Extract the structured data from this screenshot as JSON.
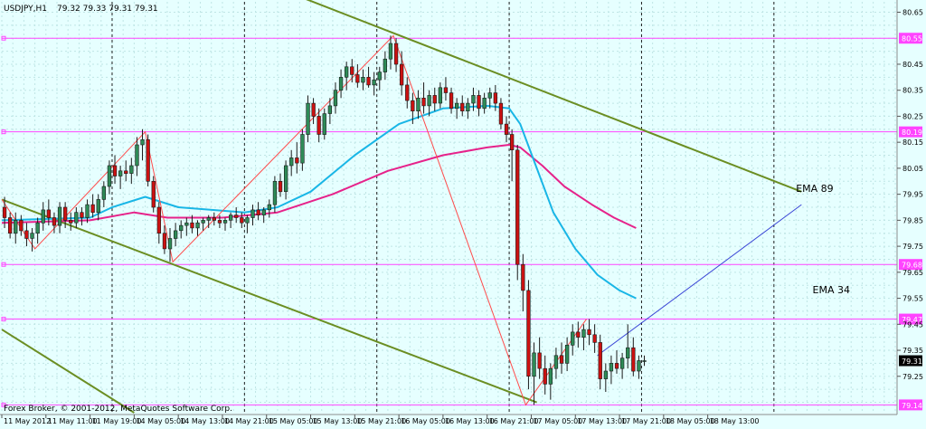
{
  "header": {
    "symbol": "USDJPY,H1",
    "ohlc": "79.32 79.33 79.31 79.31"
  },
  "footer": {
    "copyright": "Forex Broker, © 2001-2012, MetaQuotes Software Corp."
  },
  "colors": {
    "background": "#e6ffff",
    "grid": "#bfe5e5",
    "bull_candle": "#2e8b57",
    "bear_candle": "#cc1111",
    "ema34": "#19b6e6",
    "ema89": "#e6228a",
    "hline": "#ff44ff",
    "trendline": "#6b8e23",
    "zigzag": "#ff4b4b",
    "projection": "#3b46d6",
    "price_tag": "#ff44ff",
    "current_tag": "#000000"
  },
  "chart_data": {
    "type": "candlestick",
    "symbol": "USDJPY,H1",
    "ylim": [
      79.11,
      80.69
    ],
    "y_ticks": [
      "80.65",
      "80.45",
      "80.35",
      "80.25",
      "80.15",
      "80.05",
      "79.95",
      "79.85",
      "79.75",
      "79.65",
      "79.55",
      "79.45",
      "79.35",
      "79.25"
    ],
    "x_ticks": [
      "11 May 2012",
      "11 May 11:00",
      "11 May 19:00",
      "14 May 05:00",
      "14 May 13:00",
      "14 May 21:00",
      "15 May 05:00",
      "15 May 13:00",
      "15 May 21:00",
      "16 May 05:00",
      "16 May 13:00",
      "16 May 21:00",
      "17 May 05:00",
      "17 May 13:00",
      "17 May 21:00",
      "18 May 05:00",
      "18 May 13:00"
    ],
    "x_range": [
      0,
      162
    ],
    "annotations": [
      {
        "text": "EMA 89",
        "x": 144,
        "y": 79.96
      },
      {
        "text": "EMA 34",
        "x": 147,
        "y": 79.57
      }
    ],
    "horizontal_levels": [
      {
        "label": "80.55",
        "value": 80.55
      },
      {
        "label": "80.19",
        "value": 80.19
      },
      {
        "label": "79.68",
        "value": 79.68
      },
      {
        "label": "79.47",
        "value": 79.47
      },
      {
        "label": "79.14",
        "value": 79.14
      }
    ],
    "current_price": "79.31",
    "candles": [
      [
        79.9,
        79.94,
        79.82,
        79.86
      ],
      [
        79.86,
        79.88,
        79.78,
        79.8
      ],
      [
        79.8,
        79.88,
        79.76,
        79.85
      ],
      [
        79.85,
        79.87,
        79.79,
        79.81
      ],
      [
        79.81,
        79.84,
        79.75,
        79.78
      ],
      [
        79.78,
        79.82,
        79.73,
        79.8
      ],
      [
        79.8,
        79.86,
        79.76,
        79.84
      ],
      [
        79.84,
        79.92,
        79.81,
        79.89
      ],
      [
        79.89,
        79.93,
        79.83,
        79.86
      ],
      [
        79.86,
        79.88,
        79.8,
        79.83
      ],
      [
        79.83,
        79.92,
        79.8,
        79.9
      ],
      [
        79.9,
        79.92,
        79.82,
        79.85
      ],
      [
        79.85,
        79.88,
        79.81,
        79.84
      ],
      [
        79.84,
        79.9,
        79.82,
        79.88
      ],
      [
        79.88,
        79.9,
        79.83,
        79.86
      ],
      [
        79.86,
        79.93,
        79.84,
        79.91
      ],
      [
        79.91,
        79.95,
        79.86,
        79.88
      ],
      [
        79.88,
        79.95,
        79.85,
        79.93
      ],
      [
        79.93,
        80.0,
        79.9,
        79.98
      ],
      [
        79.98,
        80.08,
        79.95,
        80.06
      ],
      [
        80.06,
        80.1,
        79.99,
        80.02
      ],
      [
        80.02,
        80.06,
        79.97,
        80.04
      ],
      [
        80.04,
        80.08,
        80.0,
        80.03
      ],
      [
        80.03,
        80.09,
        79.99,
        80.06
      ],
      [
        80.06,
        80.17,
        80.02,
        80.14
      ],
      [
        80.14,
        80.2,
        80.08,
        80.16
      ],
      [
        80.16,
        80.18,
        79.98,
        80.0
      ],
      [
        80.0,
        80.02,
        79.88,
        79.9
      ],
      [
        79.9,
        79.92,
        79.76,
        79.8
      ],
      [
        79.8,
        79.83,
        79.72,
        79.74
      ],
      [
        79.74,
        79.82,
        79.69,
        79.78
      ],
      [
        79.78,
        79.84,
        79.75,
        79.81
      ],
      [
        79.81,
        79.85,
        79.78,
        79.83
      ],
      [
        79.83,
        79.86,
        79.79,
        79.84
      ],
      [
        79.84,
        79.87,
        79.8,
        79.82
      ],
      [
        79.82,
        79.85,
        79.79,
        79.84
      ],
      [
        79.84,
        79.86,
        79.81,
        79.85
      ],
      [
        79.85,
        79.87,
        79.82,
        79.86
      ],
      [
        79.86,
        79.88,
        79.83,
        79.85
      ],
      [
        79.85,
        79.87,
        79.82,
        79.84
      ],
      [
        79.84,
        79.86,
        79.81,
        79.85
      ],
      [
        79.85,
        79.88,
        79.82,
        79.87
      ],
      [
        79.87,
        79.9,
        79.84,
        79.86
      ],
      [
        79.86,
        79.88,
        79.82,
        79.84
      ],
      [
        79.84,
        79.87,
        79.8,
        79.86
      ],
      [
        79.86,
        79.91,
        79.83,
        79.89
      ],
      [
        79.89,
        79.92,
        79.85,
        79.87
      ],
      [
        79.87,
        79.9,
        79.84,
        79.89
      ],
      [
        79.89,
        79.93,
        79.86,
        79.91
      ],
      [
        79.91,
        80.02,
        79.88,
        80.0
      ],
      [
        80.0,
        80.03,
        79.94,
        79.96
      ],
      [
        79.96,
        80.08,
        79.93,
        80.06
      ],
      [
        80.06,
        80.12,
        80.02,
        80.09
      ],
      [
        80.09,
        80.15,
        80.03,
        80.07
      ],
      [
        80.07,
        80.2,
        80.04,
        80.18
      ],
      [
        80.18,
        80.33,
        80.15,
        80.3
      ],
      [
        80.3,
        80.32,
        80.22,
        80.25
      ],
      [
        80.25,
        80.28,
        80.15,
        80.18
      ],
      [
        80.18,
        80.28,
        80.16,
        80.26
      ],
      [
        80.26,
        80.32,
        80.22,
        80.29
      ],
      [
        80.29,
        80.38,
        80.26,
        80.35
      ],
      [
        80.35,
        80.43,
        80.32,
        80.4
      ],
      [
        80.4,
        80.46,
        80.35,
        80.44
      ],
      [
        80.44,
        80.47,
        80.38,
        80.41
      ],
      [
        80.41,
        80.45,
        80.36,
        80.38
      ],
      [
        80.38,
        80.43,
        80.35,
        80.4
      ],
      [
        80.4,
        80.44,
        80.36,
        80.37
      ],
      [
        80.37,
        80.42,
        80.33,
        80.39
      ],
      [
        80.39,
        80.44,
        80.35,
        80.42
      ],
      [
        80.42,
        80.5,
        80.39,
        80.47
      ],
      [
        80.47,
        80.56,
        80.43,
        80.53
      ],
      [
        80.53,
        80.55,
        80.42,
        80.45
      ],
      [
        80.45,
        80.5,
        80.33,
        80.37
      ],
      [
        80.37,
        80.4,
        80.28,
        80.31
      ],
      [
        80.31,
        80.34,
        80.22,
        80.27
      ],
      [
        80.27,
        80.35,
        80.24,
        80.32
      ],
      [
        80.32,
        80.38,
        80.26,
        80.29
      ],
      [
        80.29,
        80.35,
        80.25,
        80.33
      ],
      [
        80.33,
        80.36,
        80.27,
        80.3
      ],
      [
        80.3,
        80.38,
        80.28,
        80.36
      ],
      [
        80.36,
        80.4,
        80.31,
        80.34
      ],
      [
        80.34,
        80.36,
        80.26,
        80.28
      ],
      [
        80.28,
        80.32,
        80.24,
        80.3
      ],
      [
        80.3,
        80.33,
        80.25,
        80.27
      ],
      [
        80.27,
        80.32,
        80.24,
        80.3
      ],
      [
        80.3,
        80.36,
        80.27,
        80.33
      ],
      [
        80.33,
        80.35,
        80.25,
        80.28
      ],
      [
        80.28,
        80.34,
        80.26,
        80.32
      ],
      [
        80.32,
        80.36,
        80.28,
        80.34
      ],
      [
        80.34,
        80.37,
        80.27,
        80.3
      ],
      [
        80.3,
        80.32,
        80.2,
        80.22
      ],
      [
        80.22,
        80.25,
        80.15,
        80.18
      ],
      [
        80.18,
        80.2,
        80.0,
        80.12
      ],
      [
        80.12,
        80.14,
        79.62,
        79.68
      ],
      [
        79.68,
        79.72,
        79.5,
        79.58
      ],
      [
        79.58,
        79.62,
        79.2,
        79.25
      ],
      [
        79.25,
        79.38,
        79.14,
        79.34
      ],
      [
        79.34,
        79.4,
        79.24,
        79.28
      ],
      [
        79.28,
        79.33,
        79.18,
        79.22
      ],
      [
        79.22,
        79.3,
        79.16,
        79.28
      ],
      [
        79.28,
        79.36,
        79.24,
        79.33
      ],
      [
        79.33,
        79.38,
        79.26,
        79.3
      ],
      [
        79.3,
        79.4,
        79.27,
        79.37
      ],
      [
        79.37,
        79.45,
        79.33,
        79.42
      ],
      [
        79.42,
        79.46,
        79.36,
        79.4
      ],
      [
        79.4,
        79.45,
        79.35,
        79.43
      ],
      [
        79.43,
        79.47,
        79.37,
        79.41
      ],
      [
        79.41,
        79.45,
        79.34,
        79.38
      ],
      [
        79.38,
        79.41,
        79.2,
        79.24
      ],
      [
        79.24,
        79.3,
        79.19,
        79.27
      ],
      [
        79.27,
        79.33,
        79.22,
        79.3
      ],
      [
        79.3,
        79.35,
        79.26,
        79.28
      ],
      [
        79.28,
        79.34,
        79.24,
        79.32
      ],
      [
        79.32,
        79.45,
        79.28,
        79.36
      ],
      [
        79.36,
        79.4,
        79.25,
        79.27
      ],
      [
        79.27,
        79.33,
        79.24,
        79.31
      ],
      [
        79.31,
        79.33,
        79.29,
        79.31
      ]
    ],
    "ema34": [
      [
        0,
        79.85
      ],
      [
        16,
        79.86
      ],
      [
        20,
        79.9
      ],
      [
        26,
        79.94
      ],
      [
        32,
        79.9
      ],
      [
        44,
        79.88
      ],
      [
        50,
        79.9
      ],
      [
        56,
        79.96
      ],
      [
        64,
        80.1
      ],
      [
        72,
        80.22
      ],
      [
        80,
        80.28
      ],
      [
        88,
        80.29
      ],
      [
        92,
        80.28
      ],
      [
        94,
        80.22
      ],
      [
        97,
        80.05
      ],
      [
        100,
        79.88
      ],
      [
        104,
        79.74
      ],
      [
        108,
        79.64
      ],
      [
        112,
        79.58
      ],
      [
        115,
        79.55
      ]
    ],
    "ema89": [
      [
        0,
        79.84
      ],
      [
        16,
        79.85
      ],
      [
        24,
        79.88
      ],
      [
        30,
        79.86
      ],
      [
        40,
        79.86
      ],
      [
        50,
        79.88
      ],
      [
        60,
        79.95
      ],
      [
        70,
        80.04
      ],
      [
        80,
        80.1
      ],
      [
        88,
        80.13
      ],
      [
        92,
        80.14
      ],
      [
        94,
        80.13
      ],
      [
        98,
        80.06
      ],
      [
        102,
        79.98
      ],
      [
        107,
        79.91
      ],
      [
        111,
        79.86
      ],
      [
        115,
        79.82
      ]
    ],
    "trendlines": [
      [
        [
          0,
          79.93
        ],
        [
          97,
          79.15
        ]
      ],
      [
        [
          0,
          79.43
        ],
        [
          24,
          79.11
        ]
      ],
      [
        [
          54,
          80.71
        ],
        [
          145,
          79.96
        ]
      ]
    ],
    "zigzag": [
      [
        0,
        79.93
      ],
      [
        6,
        79.74
      ],
      [
        26,
        80.19
      ],
      [
        31,
        79.69
      ],
      [
        71,
        80.56
      ],
      [
        95,
        79.14
      ],
      [
        106,
        79.47
      ]
    ],
    "projection": [
      [
        108,
        79.33
      ],
      [
        145,
        79.91
      ]
    ]
  }
}
